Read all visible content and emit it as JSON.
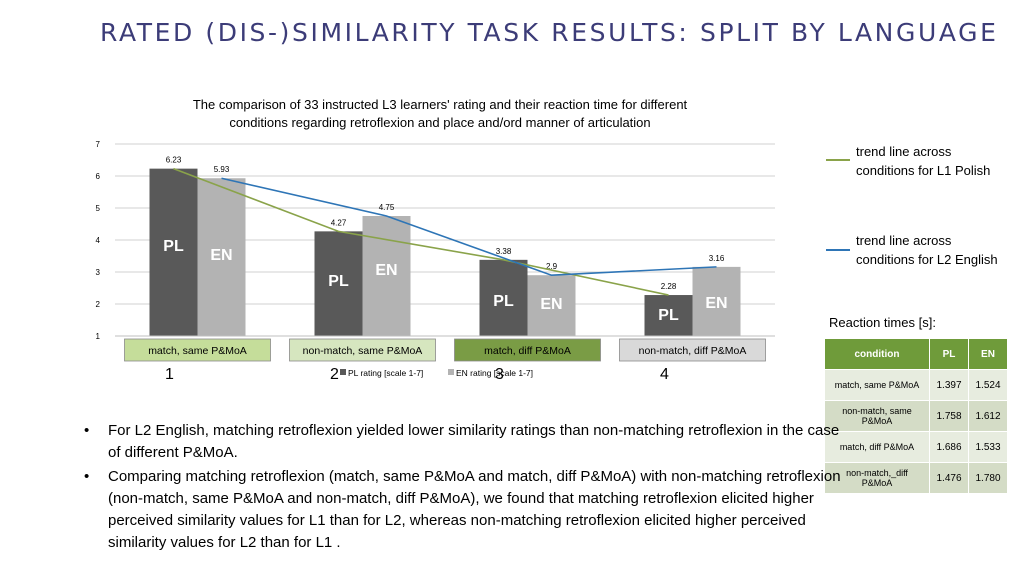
{
  "slide_title": "RATED (DIS-)SIMILARITY TASK RESULTS: SPLIT BY LANGUAGE",
  "chart_data": {
    "type": "bar",
    "title_line1": "The comparison of 33 instructed L3 learners' rating and their reaction time for different",
    "title_line2": "conditions regarding retroflexion and place and/ord manner of articulation",
    "categories": [
      "match, same P&MoA",
      "non-match, same P&MoA",
      "match, diff P&MoA",
      "non-match, diff P&MoA"
    ],
    "category_numbers": [
      "1",
      "2",
      "3",
      "4"
    ],
    "ylim": [
      1,
      7
    ],
    "yticks": [
      "1",
      "2",
      "3",
      "4",
      "5",
      "6",
      "7"
    ],
    "grid": true,
    "series": [
      {
        "name": "PL rating [scale 1-7]",
        "bar_tag": "PL",
        "color": "#595959",
        "values": [
          6.23,
          4.27,
          3.38,
          2.28
        ],
        "labels": [
          "6.23",
          "4.27",
          "3.38",
          "2.28"
        ]
      },
      {
        "name": "EN rating [scale 1-7]",
        "bar_tag": "EN",
        "color": "#b3b3b3",
        "values": [
          5.93,
          4.75,
          2.9,
          3.16
        ],
        "labels": [
          "5.93",
          "4.75",
          "2.9",
          "3.16"
        ]
      }
    ],
    "trend_lines": [
      {
        "series": "PL",
        "color": "#8aa34a"
      },
      {
        "series": "EN",
        "color": "#2e75b6"
      }
    ],
    "category_box_colors": [
      "#c5dd9a",
      "#d6e6bf",
      "#7a9c45",
      "#d9d9d9"
    ]
  },
  "trend_legend": [
    {
      "line1": "trend line across",
      "line2": "conditions for L1 Polish",
      "color": "#8aa34a"
    },
    {
      "line1": "trend line across",
      "line2": "conditions for L2 English",
      "color": "#2e75b6"
    }
  ],
  "reaction_times": {
    "title": "Reaction times [s]:",
    "headers": [
      "condition",
      "PL",
      "EN"
    ],
    "rows": [
      {
        "condition": "match, same P&MoA",
        "pl": "1.397",
        "en": "1.524"
      },
      {
        "condition": "non-match, same P&MoA",
        "pl": "1.758",
        "en": "1.612"
      },
      {
        "condition": "match, diff P&MoA",
        "pl": "1.686",
        "en": "1.533"
      },
      {
        "condition": "non-match,_diff P&MoA",
        "pl": "1.476",
        "en": "1.780"
      }
    ]
  },
  "bullets": [
    {
      "marker": "•",
      "text": "For L2 English, matching retroflexion yielded lower similarity ratings than non-matching retroflexion in the case of different P&MoA."
    },
    {
      "marker": "•",
      "text": "Comparing matching retroflexion (match, same P&MoA and match, diff P&MoA) with non-matching retroflexion (non-match, same P&MoA and non-match, diff P&MoA), we found that matching retroflexion elicited higher perceived similarity values for L1 than for L2, whereas non-matching retroflexion elicited higher perceived similarity values for L2 than for L1 ."
    }
  ]
}
